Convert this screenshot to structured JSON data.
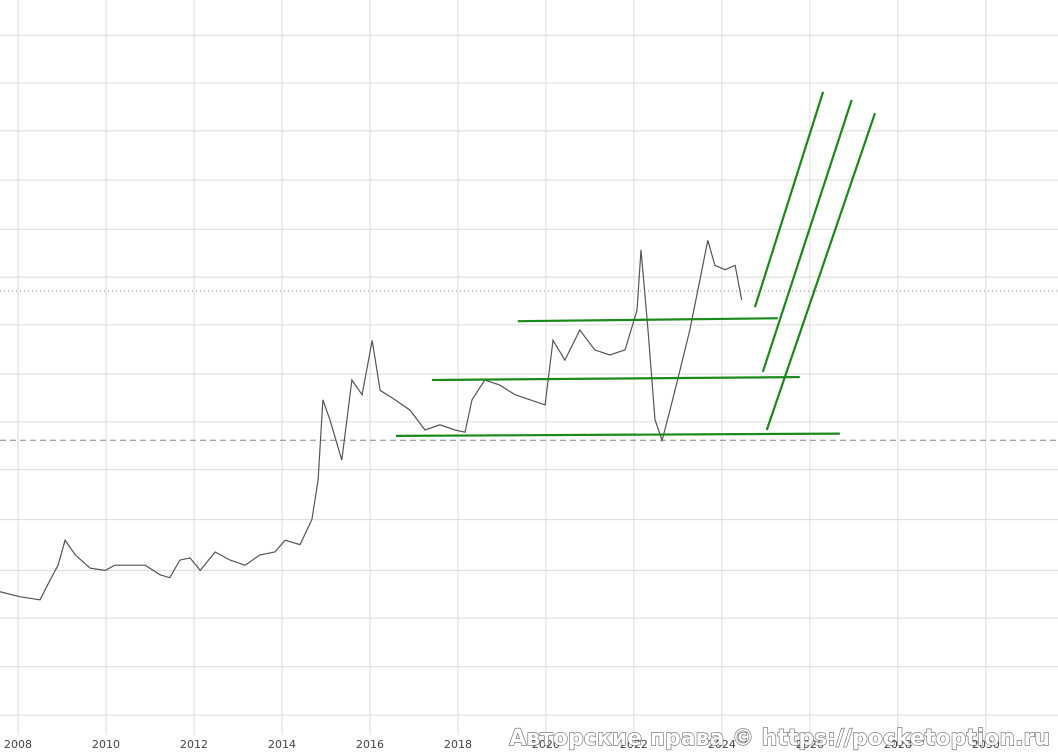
{
  "chart_data": {
    "type": "line",
    "watermark": "Авторские права © https://pocketoption.ru",
    "xlim": [
      2007.59,
      2031.64
    ],
    "xticks": [
      2008,
      2010,
      2012,
      2014,
      2016,
      2018,
      2020,
      2022,
      2024,
      2026,
      2028,
      2030
    ],
    "ylim": [
      0,
      100
    ],
    "ygrid": [
      95.2,
      88.7,
      82.2,
      75.5,
      68.8,
      62.3,
      55.8,
      49.1,
      42.6,
      36.1,
      29.3,
      22.4,
      15.9,
      9.3,
      2.7
    ],
    "grid": true,
    "series": [
      {
        "color": "#555555",
        "x": [
          2007.59,
          2008.05,
          2008.5,
          2008.73,
          2008.91,
          2009.07,
          2009.3,
          2009.64,
          2009.98,
          2010.2,
          2010.55,
          2010.89,
          2011.23,
          2011.45,
          2011.68,
          2011.91,
          2012.14,
          2012.48,
          2012.82,
          2013.16,
          2013.5,
          2013.84,
          2014.07,
          2014.41,
          2014.68,
          2014.82,
          2014.93,
          2015.09,
          2015.36,
          2015.59,
          2015.82,
          2016.05,
          2016.23,
          2016.57,
          2016.91,
          2017.25,
          2017.59,
          2017.93,
          2018.16,
          2018.32,
          2018.61,
          2018.95,
          2019.3,
          2019.64,
          2019.98,
          2020.16,
          2020.43,
          2020.77,
          2021.11,
          2021.45,
          2021.8,
          2022.07,
          2022.16,
          2022.32,
          2022.48,
          2022.64,
          2022.82,
          2023.05,
          2023.27,
          2023.5,
          2023.68,
          2023.84,
          2024.07,
          2024.3,
          2024.45
        ],
        "values": [
          19.5,
          18.8,
          18.4,
          21.1,
          23.1,
          26.5,
          24.5,
          22.7,
          22.4,
          23.1,
          23.1,
          23.1,
          21.8,
          21.4,
          23.8,
          24.1,
          22.4,
          24.9,
          23.8,
          23.1,
          24.5,
          24.9,
          26.5,
          25.9,
          29.3,
          34.7,
          45.6,
          42.9,
          37.4,
          48.3,
          46.3,
          53.7,
          46.9,
          45.6,
          44.2,
          41.5,
          42.2,
          41.5,
          41.2,
          45.6,
          48.3,
          47.6,
          46.3,
          45.6,
          44.9,
          53.7,
          51.0,
          55.1,
          52.4,
          51.7,
          52.4,
          57.8,
          66.0,
          55.1,
          42.9,
          40.1,
          44.2,
          49.7,
          55.1,
          61.9,
          67.3,
          63.9,
          63.3,
          63.9,
          59.2
        ]
      }
    ],
    "trend_lines": {
      "color": "#1a8a1a",
      "lines": [
        {
          "x": [
            2019.36,
            2025.27
          ],
          "y": [
            56.3,
            56.7
          ]
        },
        {
          "x": [
            2017.41,
            2025.77
          ],
          "y": [
            48.3,
            48.7
          ]
        },
        {
          "x": [
            2016.59,
            2026.68
          ],
          "y": [
            40.7,
            41.0
          ]
        },
        {
          "x": [
            2024.75,
            2026.3
          ],
          "y": [
            58.2,
            87.5
          ]
        },
        {
          "x": [
            2024.93,
            2026.95
          ],
          "y": [
            49.4,
            86.4
          ]
        },
        {
          "x": [
            2025.02,
            2027.48
          ],
          "y": [
            41.5,
            84.6
          ]
        }
      ]
    },
    "hlines": [
      {
        "value": 60.4,
        "style": "dotted"
      },
      {
        "value": 40.1,
        "style": "dashed"
      }
    ]
  }
}
